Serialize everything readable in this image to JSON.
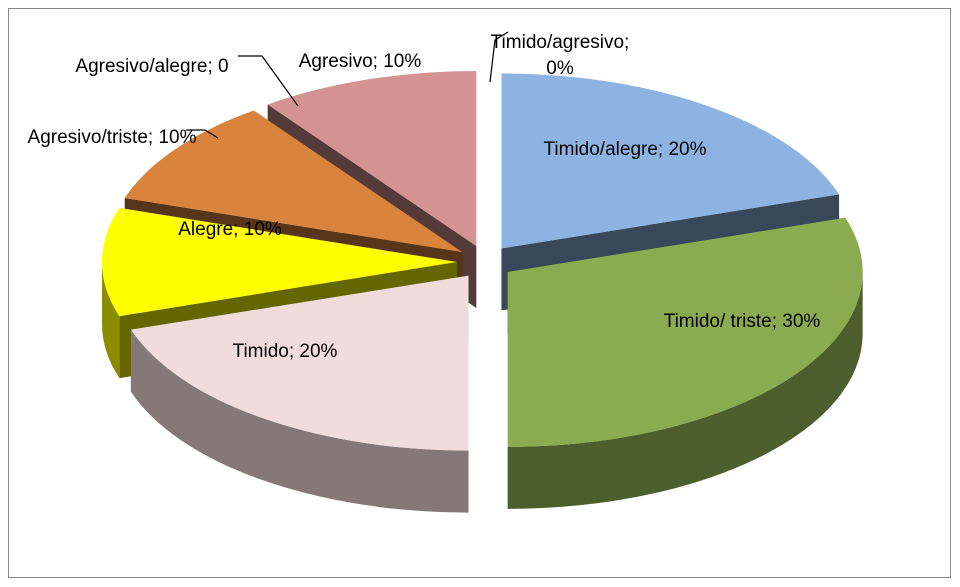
{
  "chart_data": {
    "type": "pie",
    "values": [
      0,
      20,
      30,
      20,
      10,
      10,
      0,
      10
    ],
    "value_labels": [
      "Timido/agresivo; 0%",
      "Timido/alegre; 20%",
      "Timido/ triste; 30%",
      "Timido; 20%",
      "Alegre; 10%",
      "Agresivo/triste; 10%",
      "Agresivo/alegre; 0",
      "Agresivo; 10%"
    ],
    "colors": [
      "#8db3e2",
      "#8db3e2",
      "#8aab4f",
      "#f0dcdb",
      "#ffff00",
      "#d9843d",
      "#3b4e6a",
      "#d49292"
    ]
  }
}
